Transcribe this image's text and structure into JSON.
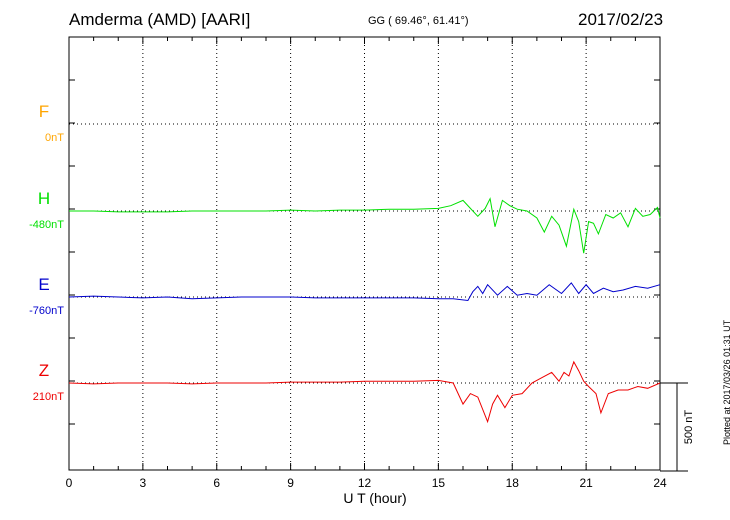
{
  "header": {
    "station": "Amderma (AMD)  [AARI]",
    "coords": "GG ( 69.46°,  61.41°)",
    "date": "2017/02/23"
  },
  "footer": {
    "plotted": "Plotted at 2017/03/26 01:31  UT"
  },
  "chart_data": {
    "type": "line",
    "xlabel": "U T (hour)",
    "xlim": [
      0,
      24
    ],
    "xticks": [
      "0",
      "3",
      "6",
      "9",
      "12",
      "15",
      "18",
      "21",
      "24"
    ],
    "grid": true,
    "scale_bar": {
      "label": "500 nT",
      "value_nT": 500
    },
    "series": [
      {
        "name": "F",
        "baseline": "0nT",
        "color": "#ffa500",
        "x": [],
        "y": []
      },
      {
        "name": "H",
        "baseline": "-480nT",
        "color": "#00e000",
        "x": [
          0,
          1,
          2,
          3,
          4,
          5,
          6,
          7,
          8,
          9,
          10,
          11,
          12,
          13,
          14,
          15,
          15.5,
          16,
          16.3,
          16.6,
          16.9,
          17.1,
          17.3,
          17.6,
          17.9,
          18.2,
          18.6,
          19.0,
          19.3,
          19.6,
          19.9,
          20.2,
          20.5,
          20.7,
          20.9,
          21.1,
          21.3,
          21.5,
          21.8,
          22.1,
          22.4,
          22.7,
          23.0,
          23.3,
          23.6,
          23.9,
          24
        ],
        "y": [
          0,
          0,
          -5,
          -5,
          -5,
          0,
          0,
          0,
          0,
          5,
          0,
          5,
          5,
          10,
          10,
          15,
          30,
          60,
          15,
          -30,
          15,
          70,
          -90,
          60,
          30,
          10,
          0,
          -40,
          -120,
          -30,
          -80,
          -200,
          10,
          -60,
          -240,
          -60,
          -70,
          -130,
          -20,
          -40,
          -10,
          -90,
          15,
          -30,
          -20,
          20,
          -40
        ]
      },
      {
        "name": "E",
        "baseline": "-760nT",
        "color": "#0000cc",
        "x": [
          0,
          1,
          2,
          3,
          4,
          5,
          6,
          7,
          8,
          9,
          10,
          11,
          12,
          13,
          14,
          15,
          15.6,
          16.2,
          16.4,
          16.6,
          16.8,
          17.0,
          17.4,
          17.8,
          18.2,
          18.6,
          19.0,
          19.5,
          20.0,
          20.4,
          20.7,
          21.0,
          21.3,
          21.7,
          22.1,
          22.5,
          23.0,
          23.5,
          24
        ],
        "y": [
          0,
          5,
          0,
          -5,
          0,
          -10,
          -5,
          0,
          0,
          0,
          -5,
          -5,
          -5,
          -5,
          -5,
          -10,
          -10,
          -20,
          30,
          60,
          20,
          70,
          10,
          60,
          10,
          20,
          10,
          70,
          20,
          80,
          20,
          70,
          20,
          50,
          30,
          40,
          60,
          50,
          70
        ]
      },
      {
        "name": "Z",
        "baseline": "210nT",
        "color": "#ee0000",
        "x": [
          0,
          1,
          2,
          3,
          4,
          5,
          6,
          7,
          8,
          9,
          10,
          11,
          12,
          13,
          14,
          15,
          15.6,
          16.0,
          16.3,
          16.6,
          17.0,
          17.2,
          17.4,
          17.7,
          18.0,
          18.4,
          18.8,
          19.2,
          19.6,
          19.9,
          20.1,
          20.3,
          20.5,
          20.7,
          20.9,
          21.1,
          21.4,
          21.6,
          21.9,
          22.3,
          22.7,
          23.1,
          23.5,
          24
        ],
        "y": [
          0,
          -5,
          0,
          0,
          0,
          -5,
          0,
          0,
          0,
          5,
          5,
          5,
          10,
          10,
          10,
          15,
          0,
          -120,
          -60,
          -80,
          -220,
          -120,
          -70,
          -140,
          -70,
          -60,
          0,
          30,
          60,
          10,
          60,
          40,
          120,
          70,
          10,
          -20,
          -60,
          -170,
          -60,
          -40,
          -40,
          -20,
          -30,
          0
        ]
      }
    ]
  }
}
